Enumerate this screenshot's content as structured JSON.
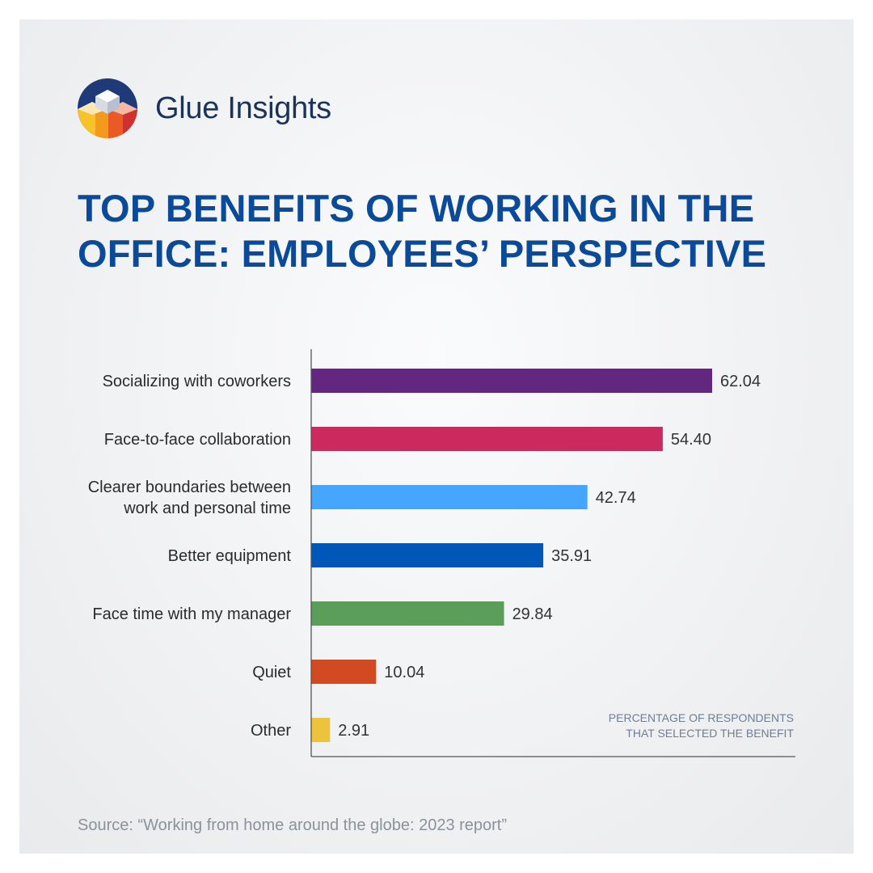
{
  "brand": {
    "name": "Glue Insights",
    "logo_icon": "cube-logo-icon"
  },
  "title": "TOP BENEFITS OF WORKING IN THE OFFICE: EMPLOYEES’ PERSPECTIVE",
  "source": "Source: “Working from home around the globe: 2023 report”",
  "colors": {
    "title": "#0a4a98",
    "brand": "#1b3358",
    "axis": "#555555"
  },
  "chart_data": {
    "type": "bar",
    "orientation": "horizontal",
    "categories": [
      [
        "Socializing with coworkers"
      ],
      [
        "Face-to-face collaboration"
      ],
      [
        "Clearer boundaries between",
        "work and personal time"
      ],
      [
        "Better equipment"
      ],
      [
        "Face time with my manager"
      ],
      [
        "Quiet"
      ],
      [
        "Other"
      ]
    ],
    "values": [
      62.04,
      54.4,
      42.74,
      35.91,
      29.84,
      10.04,
      2.91
    ],
    "value_labels": [
      "62.04",
      "54.40",
      "42.74",
      "35.91",
      "29.84",
      "10.04",
      "2.91"
    ],
    "bar_colors": [
      "#64277f",
      "#cc2a5e",
      "#46a6fd",
      "#0057b8",
      "#5a9e5a",
      "#d24a22",
      "#edc23c"
    ],
    "annotation": [
      "PERCENTAGE OF RESPONDENTS",
      "THAT SELECTED THE BENEFIT"
    ],
    "xlim": [
      0,
      75
    ],
    "grid": false,
    "legend": "none"
  }
}
